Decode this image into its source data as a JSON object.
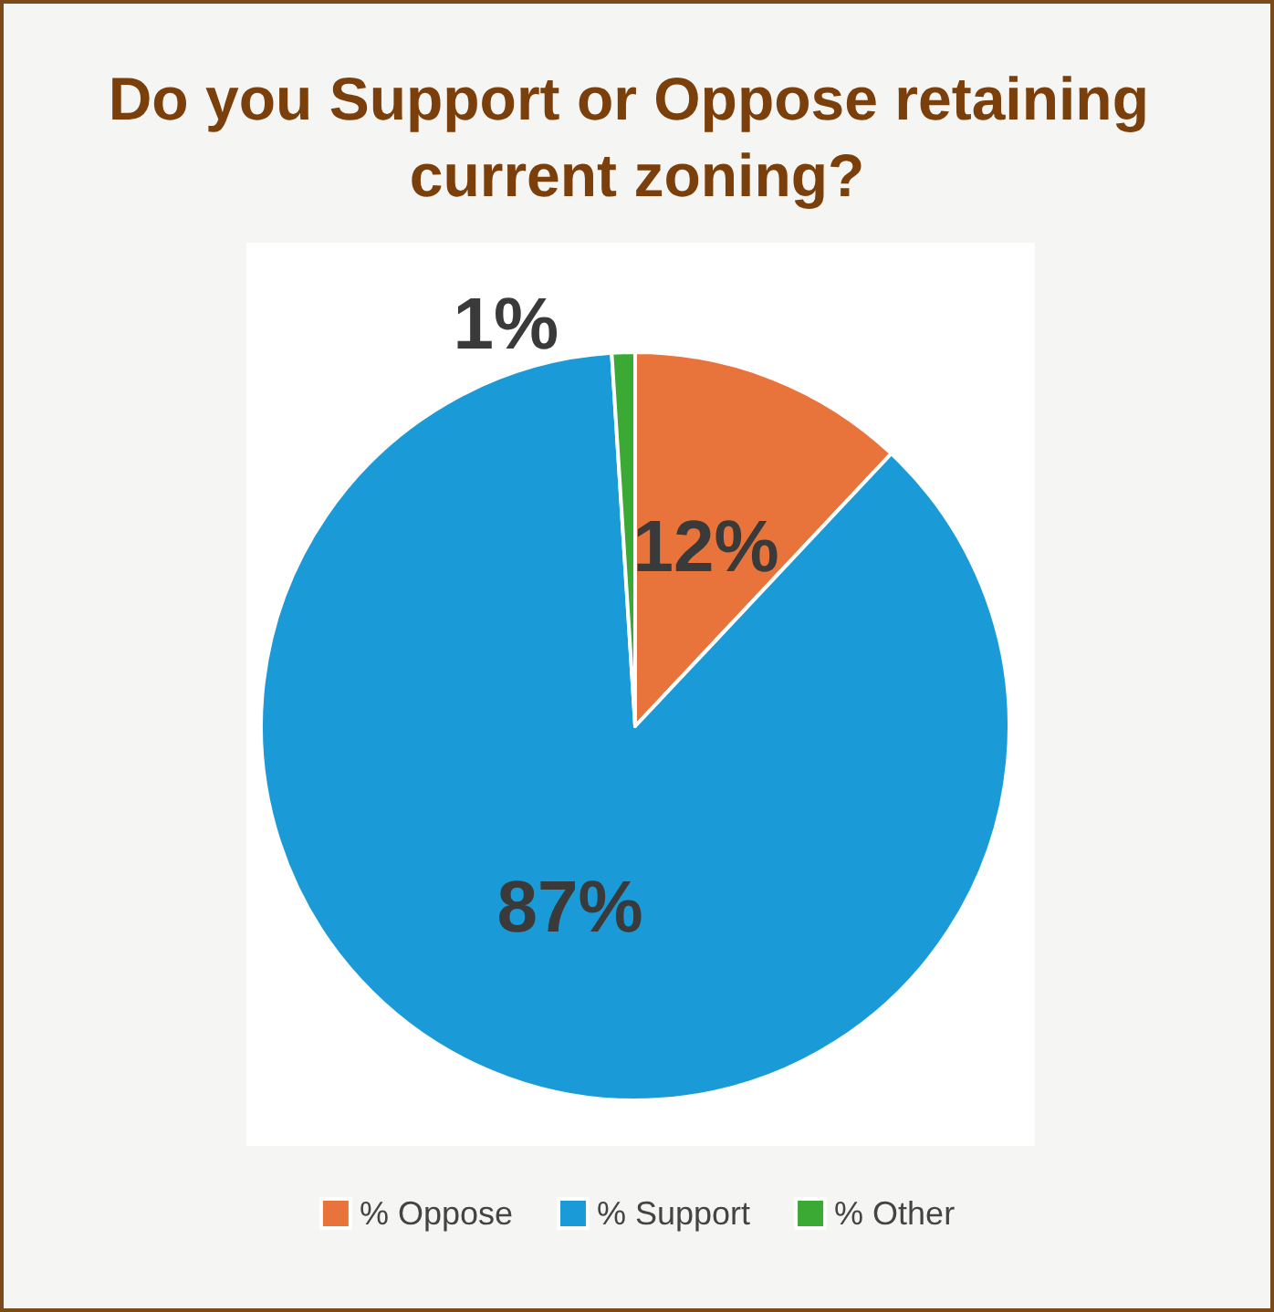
{
  "chart_data": {
    "type": "pie",
    "title": "Do you Support or Oppose retaining current zoning?",
    "categories": [
      "% Oppose",
      "% Support",
      "% Other"
    ],
    "values": [
      12,
      87,
      1
    ],
    "colors": [
      "#e8743b",
      "#1a9bd7",
      "#3aaa35"
    ],
    "value_labels": [
      "12%",
      "87%",
      "1%"
    ],
    "legend": "bottom"
  }
}
